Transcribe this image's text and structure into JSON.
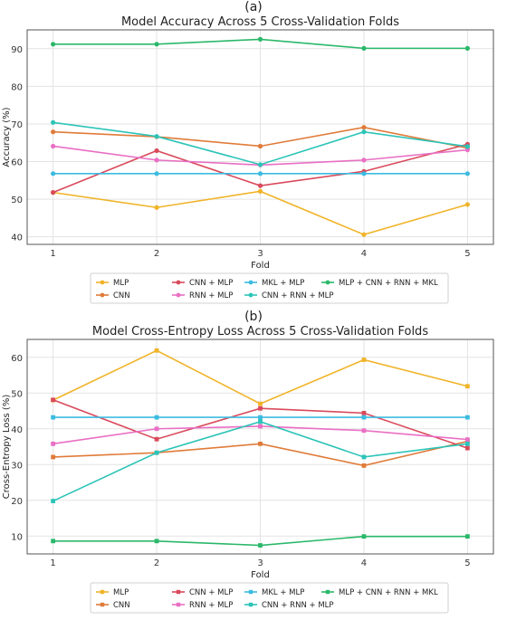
{
  "figure": {
    "panels": [
      "(a)",
      "(b)"
    ]
  },
  "chart_data": [
    {
      "type": "line",
      "title": "Model Accuracy Across 5 Cross-Validation Folds",
      "xlabel": "Fold",
      "ylabel": "Accuracy (%)",
      "x": [
        1,
        2,
        3,
        4,
        5
      ],
      "xticks": [
        "1",
        "2",
        "3",
        "4",
        "5"
      ],
      "ylim": [
        38,
        95
      ],
      "yticks": [
        "40",
        "50",
        "60",
        "70",
        "80",
        "90"
      ],
      "grid": true,
      "legend_position": "bottom",
      "series": [
        {
          "name": "MLP",
          "color": "#f0b429",
          "values": [
            51.8,
            47.8,
            52.1,
            40.6,
            48.6
          ]
        },
        {
          "name": "CNN",
          "color": "#e07b39",
          "values": [
            67.9,
            66.6,
            64.1,
            69.1,
            63.6
          ]
        },
        {
          "name": "CNN + MLP",
          "color": "#d94a5b",
          "values": [
            51.8,
            62.9,
            53.6,
            57.4,
            64.6
          ]
        },
        {
          "name": "RNN + MLP",
          "color": "#e96fc4",
          "values": [
            64.1,
            60.4,
            59.1,
            60.4,
            63.1
          ]
        },
        {
          "name": "MKL + MLP",
          "color": "#3bbbe0",
          "values": [
            56.8,
            56.8,
            56.8,
            56.8,
            56.8
          ]
        },
        {
          "name": "CNN + RNN + MLP",
          "color": "#2cc4b8",
          "values": [
            70.4,
            66.7,
            59.2,
            67.9,
            64.0
          ]
        },
        {
          "name": "MLP + CNN + RNN + MKL",
          "color": "#2ab86a",
          "values": [
            91.2,
            91.2,
            92.5,
            90.1,
            90.1
          ]
        }
      ]
    },
    {
      "type": "line",
      "title": "Model Cross-Entropy Loss Across 5 Cross-Validation Folds",
      "xlabel": "Fold",
      "ylabel": "Cross-Entropy Loss (%)",
      "x": [
        1,
        2,
        3,
        4,
        5
      ],
      "xticks": [
        "1",
        "2",
        "3",
        "4",
        "5"
      ],
      "ylim": [
        5,
        65
      ],
      "yticks": [
        "10",
        "20",
        "30",
        "40",
        "50",
        "60"
      ],
      "grid": true,
      "legend_position": "bottom",
      "series": [
        {
          "name": "MLP",
          "color": "#f0b429",
          "values": [
            48.0,
            61.9,
            47.0,
            59.3,
            51.9
          ]
        },
        {
          "name": "CNN",
          "color": "#e07b39",
          "values": [
            32.1,
            33.3,
            35.8,
            29.7,
            36.5
          ]
        },
        {
          "name": "CNN + MLP",
          "color": "#d94a5b",
          "values": [
            48.1,
            37.1,
            45.7,
            44.4,
            34.6
          ]
        },
        {
          "name": "RNN + MLP",
          "color": "#e96fc4",
          "values": [
            35.8,
            40.0,
            40.7,
            39.5,
            37.0
          ]
        },
        {
          "name": "MKL + MLP",
          "color": "#3bbbe0",
          "values": [
            43.2,
            43.2,
            43.2,
            43.2,
            43.2
          ]
        },
        {
          "name": "CNN + RNN + MLP",
          "color": "#2cc4b8",
          "values": [
            19.8,
            33.3,
            42.0,
            32.1,
            35.8
          ]
        },
        {
          "name": "MLP + CNN + RNN + MKL",
          "color": "#2ab86a",
          "values": [
            8.6,
            8.6,
            7.4,
            9.9,
            9.9
          ]
        }
      ]
    }
  ]
}
